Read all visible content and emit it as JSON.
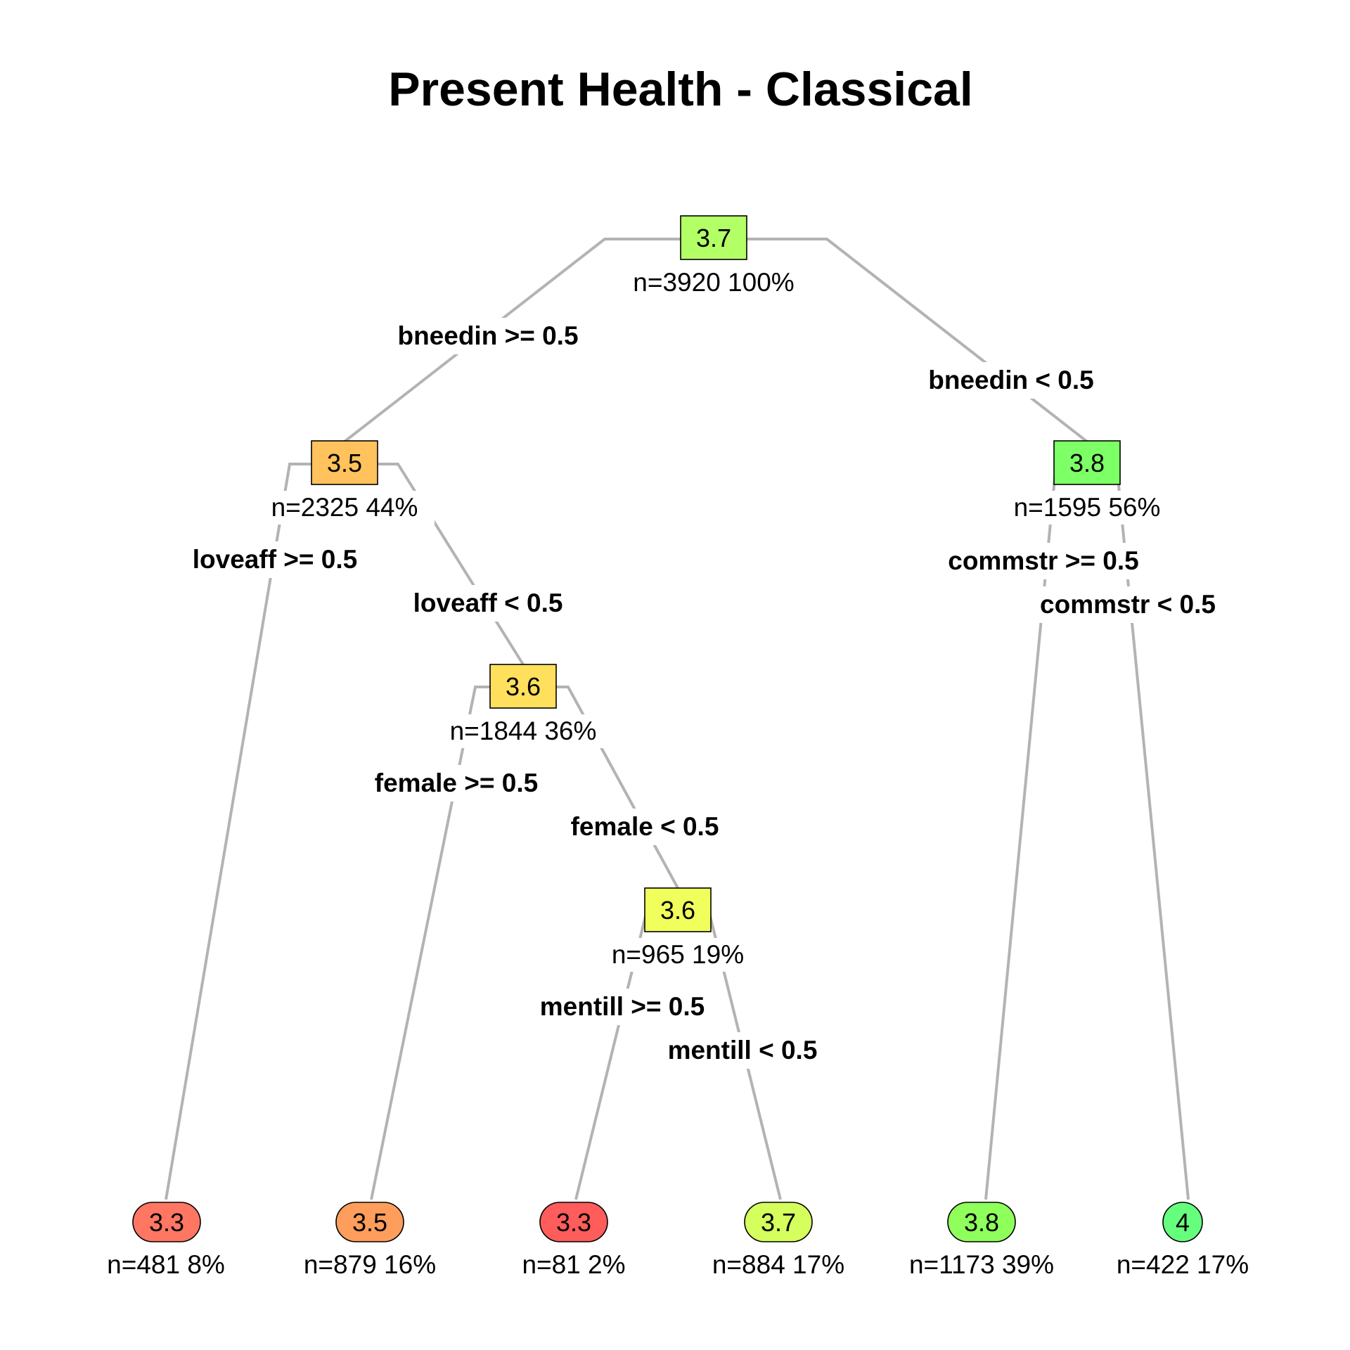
{
  "title": "Present Health - Classical",
  "nodes": {
    "root": {
      "value": "3.7",
      "stat": "n=3920  100%",
      "color": "#b3ff66"
    },
    "n2": {
      "value": "3.5",
      "stat": "n=2325  44%",
      "color": "#ffc25c"
    },
    "n3": {
      "value": "3.8",
      "stat": "n=1595  56%",
      "color": "#7dff66"
    },
    "n5": {
      "value": "3.6",
      "stat": "n=1844  36%",
      "color": "#ffe05c"
    },
    "n11": {
      "value": "3.6",
      "stat": "n=965  19%",
      "color": "#f1ff5c"
    },
    "l1": {
      "value": "3.3",
      "stat": "n=481  8%",
      "color": "#ff7763"
    },
    "l2": {
      "value": "3.5",
      "stat": "n=879  16%",
      "color": "#ff9e5c"
    },
    "l3": {
      "value": "3.3",
      "stat": "n=81  2%",
      "color": "#ff5c5c"
    },
    "l4": {
      "value": "3.7",
      "stat": "n=884  17%",
      "color": "#d4ff5c"
    },
    "l5": {
      "value": "3.8",
      "stat": "n=1173  39%",
      "color": "#8fff5c"
    },
    "l6": {
      "value": "4",
      "stat": "n=422  17%",
      "color": "#66ff7d"
    }
  },
  "splits": {
    "root_left": "bneedin >= 0.5",
    "root_right": "bneedin < 0.5",
    "n2_left": "loveaff >= 0.5",
    "n2_right": "loveaff < 0.5",
    "n3_left": "commstr >= 0.5",
    "n3_right": "commstr < 0.5",
    "n5_left": "female >= 0.5",
    "n5_right": "female < 0.5",
    "n11_left": "mentill >= 0.5",
    "n11_right": "mentill < 0.5"
  }
}
